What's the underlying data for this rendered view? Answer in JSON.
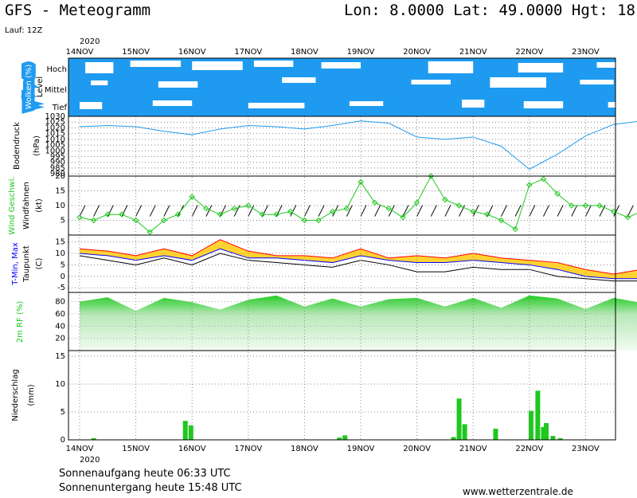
{
  "header": {
    "title": "GFS - Meteogramm",
    "coords": "Lon: 8.0000  Lat: 49.0000  Hgt: 18",
    "run": "Lauf: 12Z"
  },
  "footer": {
    "sunrise": "Sonnenaufgang heute 06:33 UTC",
    "sunset": "Sonnenuntergang heute 15:48 UTC",
    "source": "www.wetterzentrale.de"
  },
  "colors": {
    "cloud": "#1e9bf0",
    "pressure": "#1e9bf0",
    "wind": "#1ec81e",
    "tmin": "#0000ff",
    "tmax": "#ff0000",
    "band": "#ffd232",
    "band2": "#7fd23c",
    "rh": "#1ec81e",
    "precip": "#1ec81e",
    "precip_red": "#ff0000"
  },
  "chart_data": [
    {
      "type": "heatmap",
      "panel": "clouds",
      "ylabel": "Wolken (%)",
      "ylabel2": "Level",
      "levels": [
        "Hoch",
        "Mittel",
        "Tief"
      ],
      "x_year_top": "2020",
      "dates": [
        "14NOV",
        "15NOV",
        "16NOV",
        "17NOV",
        "18NOV",
        "19NOV",
        "20NOV",
        "21NOV",
        "22NOV",
        "23NOV"
      ]
    },
    {
      "type": "line",
      "panel": "pressure",
      "ylabel": "Bodendruck",
      "ylabel2": "(hPa)",
      "yticks": [
        980,
        985,
        990,
        995,
        1000,
        1005,
        1010,
        1015,
        1020,
        1025,
        1030
      ],
      "ylim": [
        978,
        1030
      ],
      "x": [
        0,
        0.5,
        1,
        1.5,
        2,
        2.5,
        3,
        3.5,
        4,
        4.5,
        5,
        5.5,
        6,
        6.5,
        7,
        7.5,
        8,
        8.5,
        9,
        9.5,
        10
      ],
      "values": [
        1021,
        1022,
        1021,
        1017,
        1014,
        1019,
        1022,
        1021,
        1019,
        1022,
        1026,
        1024,
        1012,
        1010,
        1012,
        1004,
        984,
        997,
        1013,
        1023,
        1026
      ]
    },
    {
      "type": "line",
      "panel": "wind",
      "ylabel": "Wind Geschwi.",
      "ylabel2": "Windfahnen",
      "ylabel3": "(kt)",
      "yticks": [
        5,
        10,
        15,
        20
      ],
      "ylim": [
        0,
        20
      ],
      "x": [
        0,
        0.25,
        0.5,
        0.75,
        1,
        1.25,
        1.5,
        1.75,
        2,
        2.25,
        2.5,
        2.75,
        3,
        3.25,
        3.5,
        3.75,
        4,
        4.25,
        4.5,
        4.75,
        5,
        5.25,
        5.5,
        5.75,
        6,
        6.25,
        6.5,
        6.75,
        7,
        7.25,
        7.5,
        7.75,
        8,
        8.25,
        8.5,
        8.75,
        9,
        9.25,
        9.5,
        9.75,
        10
      ],
      "values": [
        6,
        5,
        7,
        7,
        5,
        1,
        5,
        7,
        13,
        9,
        7,
        9,
        10,
        7,
        7,
        8,
        5,
        5,
        8,
        9,
        18,
        11,
        9,
        6,
        11,
        20,
        12,
        10,
        8,
        7,
        5,
        2,
        17,
        19,
        14,
        10,
        10,
        10,
        8,
        6,
        8
      ]
    },
    {
      "type": "area",
      "panel": "temperature",
      "ylabel": "T-Min, Max",
      "ylabel2": "Taupunkt",
      "ylabel3": "(C)",
      "yticks": [
        -5,
        0,
        5,
        10,
        15
      ],
      "ylim": [
        -7,
        18
      ],
      "x": [
        0,
        0.5,
        1,
        1.5,
        2,
        2.5,
        3,
        3.5,
        4,
        4.5,
        5,
        5.5,
        6,
        6.5,
        7,
        7.5,
        8,
        8.5,
        9,
        9.5,
        10
      ],
      "series": [
        {
          "name": "Max",
          "values": [
            12,
            11,
            9,
            12,
            9,
            16,
            11,
            9,
            9,
            8,
            12,
            8,
            9,
            8,
            10,
            8,
            7,
            6,
            3,
            1,
            3
          ]
        },
        {
          "name": "Min",
          "values": [
            10,
            9,
            7,
            9,
            7,
            12,
            8,
            8,
            7,
            6,
            9,
            7,
            6,
            6,
            7,
            6,
            5,
            3,
            0,
            -1,
            -1
          ]
        },
        {
          "name": "Taupunkt",
          "values": [
            9,
            7,
            5,
            8,
            5,
            10,
            7,
            6,
            5,
            4,
            7,
            5,
            2,
            2,
            4,
            3,
            3,
            0,
            -1,
            -2,
            -2
          ]
        }
      ]
    },
    {
      "type": "area",
      "panel": "humidity",
      "ylabel": "2m RF (%)",
      "yticks": [
        20,
        40,
        60,
        80
      ],
      "ylim": [
        0,
        95
      ],
      "x": [
        0,
        0.5,
        1,
        1.5,
        2,
        2.5,
        3,
        3.5,
        4,
        4.5,
        5,
        5.5,
        6,
        6.5,
        7,
        7.5,
        8,
        8.5,
        9,
        9.5,
        10
      ],
      "values": [
        80,
        87,
        65,
        86,
        79,
        67,
        83,
        90,
        72,
        85,
        72,
        84,
        86,
        72,
        86,
        70,
        90,
        85,
        68,
        86,
        78
      ]
    },
    {
      "type": "bar",
      "panel": "precipitation",
      "ylabel": "Niederschlag",
      "ylabel2": "(mm)",
      "yticks": [
        0,
        5,
        10,
        15
      ],
      "ylim": [
        0,
        16
      ],
      "x": [
        0.25,
        1.88,
        1.98,
        4.62,
        4.72,
        6.65,
        6.75,
        6.85,
        7.4,
        8.03,
        8.15,
        8.25,
        8.3,
        8.42,
        8.55
      ],
      "values": [
        0.3,
        3.4,
        2.6,
        0.4,
        0.8,
        0.5,
        7.4,
        2.8,
        2.0,
        5.2,
        8.8,
        2.3,
        3.0,
        0.7,
        0.3
      ],
      "x_year_bottom": "2020",
      "dates": [
        "14NOV",
        "15NOV",
        "16NOV",
        "17NOV",
        "18NOV",
        "19NOV",
        "20NOV",
        "21NOV",
        "22NOV",
        "23NOV"
      ]
    }
  ]
}
